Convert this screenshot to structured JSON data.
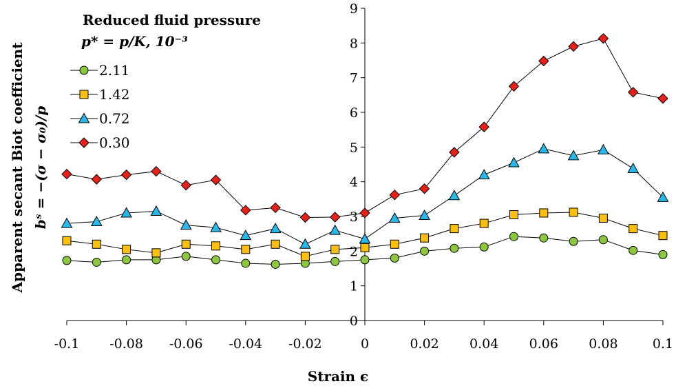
{
  "chart_data": {
    "type": "line",
    "x": [
      -0.1,
      -0.09,
      -0.08,
      -0.07,
      -0.06,
      -0.05,
      -0.04,
      -0.03,
      -0.02,
      -0.01,
      0,
      0.01,
      0.02,
      0.03,
      0.04,
      0.05,
      0.06,
      0.07,
      0.08,
      0.09,
      0.1
    ],
    "xlabel": "Strain ϵ",
    "ylabel_line1": "Apparent secant Biot coefficient",
    "ylabel_line2": "bˢ = −(σ − σ₀)/p",
    "xlim": [
      -0.1,
      0.1
    ],
    "ylim": [
      0,
      9
    ],
    "x_ticks": [
      "-0.1",
      "-0.08",
      "-0.06",
      "-0.04",
      "-0.02",
      "0",
      "0.02",
      "0.04",
      "0.06",
      "0.08",
      "0.1"
    ],
    "y_ticks": [
      "0",
      "1",
      "2",
      "3",
      "4",
      "5",
      "6",
      "7",
      "8",
      "9"
    ],
    "legend": {
      "title_line1": "Reduced fluid pressure",
      "title_line2": "p* = p/K, 10⁻³",
      "placement": "top-left"
    },
    "series": [
      {
        "name": "2.11",
        "marker": "circle",
        "color": "#8dc63f",
        "values": [
          1.73,
          1.68,
          1.75,
          1.75,
          1.85,
          1.75,
          1.65,
          1.62,
          1.65,
          1.7,
          1.75,
          1.8,
          2.0,
          2.08,
          2.12,
          2.42,
          2.38,
          2.28,
          2.33,
          2.02,
          1.9
        ]
      },
      {
        "name": "1.42",
        "marker": "square",
        "color": "#fbbf14",
        "values": [
          2.3,
          2.2,
          2.05,
          1.95,
          2.2,
          2.15,
          2.05,
          2.2,
          1.85,
          2.05,
          2.1,
          2.2,
          2.38,
          2.65,
          2.8,
          3.05,
          3.1,
          3.12,
          2.95,
          2.65,
          2.45
        ]
      },
      {
        "name": "0.72",
        "marker": "triangle",
        "color": "#29b6e8",
        "values": [
          2.8,
          2.85,
          3.1,
          3.15,
          2.75,
          2.68,
          2.45,
          2.65,
          2.2,
          2.6,
          2.35,
          2.95,
          3.03,
          3.6,
          4.2,
          4.55,
          4.95,
          4.75,
          4.92,
          4.38,
          3.55
        ]
      },
      {
        "name": "0.30",
        "marker": "diamond",
        "color": "#e8201a",
        "values": [
          4.22,
          4.07,
          4.2,
          4.3,
          3.9,
          4.05,
          3.18,
          3.25,
          2.97,
          2.98,
          3.1,
          3.62,
          3.8,
          4.85,
          5.58,
          6.75,
          7.48,
          7.9,
          8.13,
          6.58,
          6.4
        ]
      }
    ]
  }
}
